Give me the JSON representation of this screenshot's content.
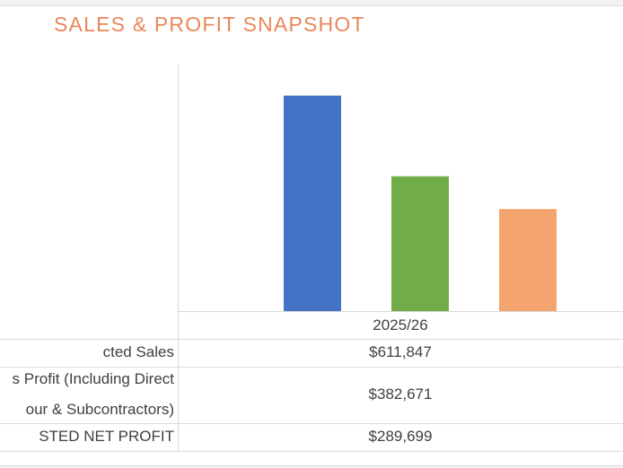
{
  "title": "SALES & PROFIT SNAPSHOT",
  "chart_data": {
    "type": "bar",
    "title": "SALES & PROFIT SNAPSHOT",
    "categories": [
      "2025/26"
    ],
    "series": [
      {
        "name": "Projected Sales",
        "values": [
          611847
        ],
        "color": "#4472c4"
      },
      {
        "name": "Gross Profit (Including Direct Labour & Subcontractors)",
        "values": [
          382671
        ],
        "color": "#70ad47"
      },
      {
        "name": "PROJECTED NET PROFIT",
        "values": [
          289699
        ],
        "color": "#f4a46f"
      }
    ],
    "ylim": [
      0,
      700000
    ],
    "grid": false,
    "legend": "data table below chart"
  },
  "table": {
    "header": "2025/26",
    "rows": [
      {
        "label": "Projected Sales",
        "visible_label_lines": [
          "cted Sales"
        ],
        "value": "$611,847"
      },
      {
        "label": "Gross Profit (Including Direct Labour & Subcontractors)",
        "visible_label_lines": [
          "s Profit (Including Direct",
          "our & Subcontractors)"
        ],
        "value": "$382,671"
      },
      {
        "label": "PROJECTED NET PROFIT",
        "visible_label_lines": [
          "STED NET PROFIT"
        ],
        "value": "$289,699"
      }
    ]
  }
}
